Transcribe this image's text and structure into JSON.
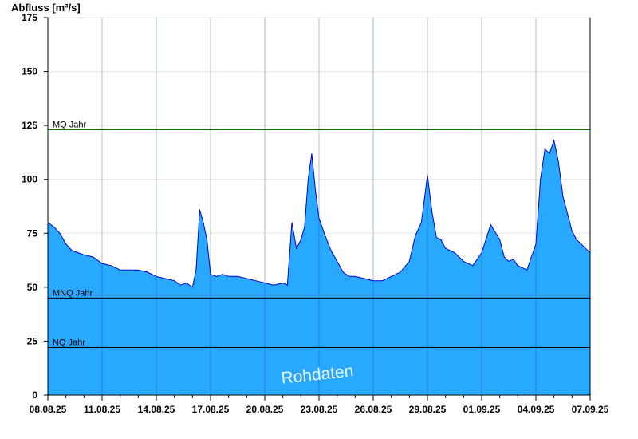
{
  "chart_data": {
    "type": "area",
    "title": "",
    "ylabel": "Abfluss [m³/s]",
    "xlabel": "",
    "ylim": [
      0,
      175
    ],
    "yticks": [
      0,
      25,
      50,
      75,
      100,
      125,
      150,
      175
    ],
    "x_start": "08.08.25",
    "x_end": "07.09.25",
    "xticks": [
      "08.08.25",
      "11.08.25",
      "14.08.25",
      "17.08.25",
      "20.08.25",
      "23.08.25",
      "26.08.25",
      "29.08.25",
      "01.09.25",
      "04.09.25",
      "07.09.25"
    ],
    "x_tick_step_days": 3,
    "grid": true,
    "watermark": "Rohdaten",
    "colors": {
      "fill": "#29a8ff",
      "line": "#0000cc",
      "mq": "#008000",
      "ref": "#000000",
      "grid": "#e6e6e6"
    },
    "reference_lines": [
      {
        "label": "MQ Jahr",
        "value": 123
      },
      {
        "label": "MNQ Jahr",
        "value": 45
      },
      {
        "label": "NQ Jahr",
        "value": 22
      }
    ],
    "series": [
      {
        "x": [
          "08.08.25",
          "08.08.25",
          "08.08.25",
          "09.08.25",
          "09.08.25",
          "09.08.25",
          "10.08.25",
          "10.08.25",
          "11.08.25",
          "11.08.25",
          "12.08.25",
          "12.08.25",
          "13.08.25",
          "13.08.25",
          "14.08.25",
          "14.08.25",
          "15.08.25",
          "15.08.25",
          "15.08.25",
          "16.08.25",
          "16.08.25",
          "16.08.25",
          "16.08.25",
          "16.08.25",
          "17.08.25",
          "17.08.25",
          "17.08.25",
          "18.08.25",
          "18.08.25",
          "19.08.25",
          "19.08.25",
          "20.08.25",
          "20.08.25",
          "21.08.25",
          "21.08.25",
          "21.08.25",
          "21.08.25",
          "22.08.25",
          "22.08.25",
          "22.08.25",
          "22.08.25",
          "22.08.25",
          "23.08.25",
          "23.08.25",
          "23.08.25",
          "24.08.25",
          "24.08.25",
          "24.08.25",
          "25.08.25",
          "25.08.25",
          "26.08.25",
          "26.08.25",
          "27.08.25",
          "27.08.25",
          "28.08.25",
          "28.08.25",
          "28.08.25",
          "29.08.25",
          "29.08.25",
          "29.08.25",
          "29.08.25",
          "30.08.25",
          "30.08.25",
          "31.08.25",
          "31.08.25",
          "01.09.25",
          "01.09.25",
          "02.09.25",
          "02.09.25",
          "02.09.25",
          "02.09.25",
          "03.09.25",
          "03.09.25",
          "04.09.25",
          "04.09.25",
          "04.09.25",
          "04.09.25",
          "05.09.25",
          "05.09.25",
          "05.09.25",
          "05.09.25",
          "06.09.25",
          "06.09.25",
          "06.09.25",
          "06.09.25",
          "07.09.25"
        ],
        "values": [
          80,
          78,
          75,
          70,
          67,
          66,
          65,
          64,
          61,
          60,
          58,
          58,
          58,
          57,
          55,
          54,
          53,
          51,
          52,
          50,
          58,
          86,
          80,
          72,
          56,
          55,
          56,
          55,
          55,
          54,
          53,
          52,
          51,
          52,
          51,
          80,
          68,
          72,
          78,
          100,
          112,
          95,
          82,
          74,
          67,
          62,
          57,
          55,
          55,
          54,
          53,
          53,
          55,
          57,
          62,
          74,
          80,
          102,
          85,
          73,
          72,
          68,
          66,
          62,
          60,
          66,
          79,
          72,
          64,
          62,
          63,
          60,
          58,
          70,
          100,
          114,
          112,
          118,
          108,
          92,
          84,
          76,
          72,
          70,
          68,
          66
        ]
      }
    ]
  }
}
